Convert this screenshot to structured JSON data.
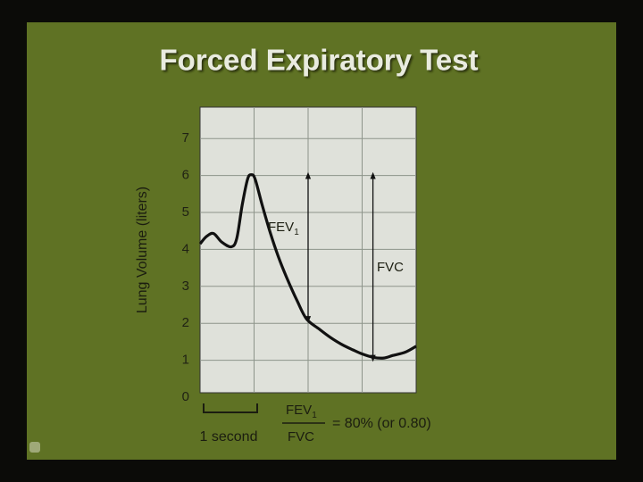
{
  "chart_data": {
    "type": "line",
    "title": "Forced Expiratory Test",
    "y_label": "Lung Volume (liters)",
    "x": [
      0,
      0.12,
      0.25,
      0.4,
      0.58,
      0.68,
      0.78,
      0.88,
      0.95,
      1.02,
      1.15,
      1.3,
      1.45,
      1.6,
      1.8,
      1.97,
      2.2,
      2.41,
      2.62,
      2.83,
      3.0,
      3.2,
      3.4,
      3.57,
      3.8,
      4.0
    ],
    "values": [
      4.15,
      4.35,
      4.43,
      4.2,
      4.07,
      4.3,
      5.2,
      5.9,
      6.02,
      5.9,
      5.2,
      4.45,
      3.8,
      3.25,
      2.6,
      2.12,
      1.85,
      1.62,
      1.43,
      1.28,
      1.17,
      1.08,
      1.06,
      1.13,
      1.22,
      1.38
    ],
    "color": "#111111",
    "xlim": [
      0,
      4
    ],
    "ylim": [
      0,
      7.85
    ],
    "yticks": [
      0,
      1,
      2,
      3,
      4,
      5,
      6,
      7
    ],
    "grid": true,
    "arrows": [
      {
        "label": "FEV",
        "subscript": "1",
        "x": 2.0,
        "from": 2.1,
        "to": 6.0
      },
      {
        "label": "FVC",
        "x": 3.2,
        "from": 1.05,
        "to": 6.0
      }
    ],
    "bracket_label": "1 second",
    "formula": {
      "numerator": "FEV",
      "numerator_subscript": "1",
      "denominator": "FVC",
      "result": "= 80% (or 0.80)"
    }
  }
}
